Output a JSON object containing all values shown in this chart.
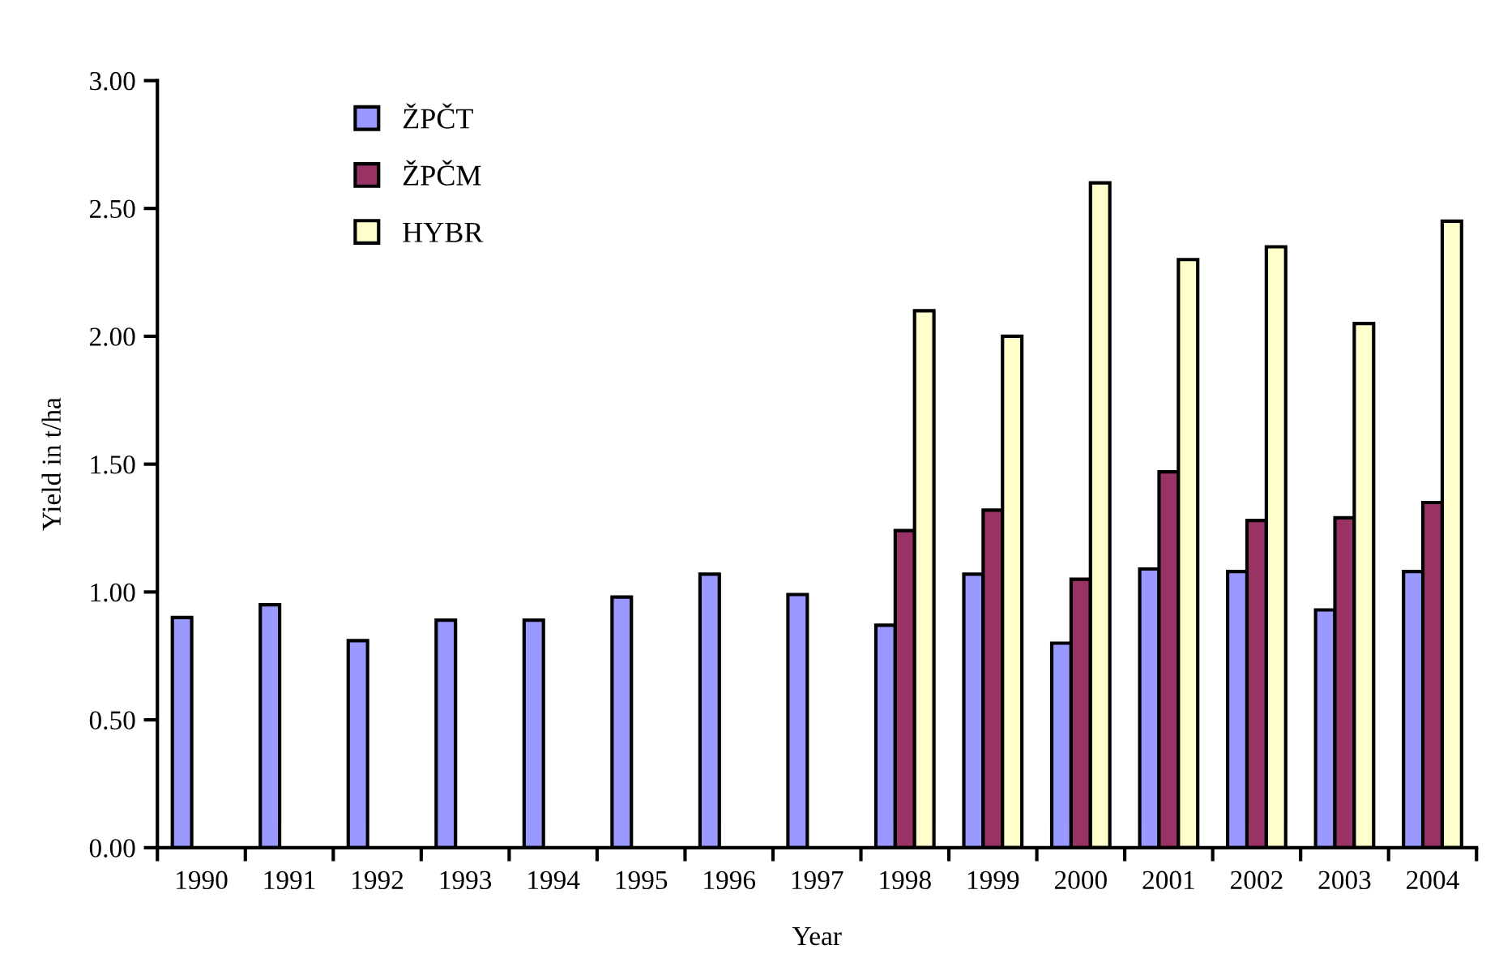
{
  "chart_data": {
    "type": "bar",
    "xlabel": "Year",
    "ylabel": "Yield in t/ha",
    "categories": [
      "1990",
      "1991",
      "1992",
      "1993",
      "1994",
      "1995",
      "1996",
      "1997",
      "1998",
      "1999",
      "2000",
      "2001",
      "2002",
      "2003",
      "2004"
    ],
    "series": [
      {
        "name": "ŽPČT",
        "color": "#9999ff",
        "values": [
          0.9,
          0.95,
          0.81,
          0.89,
          0.89,
          0.98,
          1.07,
          0.99,
          0.87,
          1.07,
          0.8,
          1.09,
          1.08,
          0.93,
          1.08
        ]
      },
      {
        "name": "ŽPČM",
        "color": "#993366",
        "values": [
          null,
          null,
          null,
          null,
          null,
          null,
          null,
          null,
          1.24,
          1.32,
          1.05,
          1.47,
          1.28,
          1.29,
          1.35
        ]
      },
      {
        "name": "HYBR",
        "color": "#ffffcc",
        "values": [
          null,
          null,
          null,
          null,
          null,
          null,
          null,
          null,
          2.1,
          2.0,
          2.6,
          2.3,
          2.35,
          2.05,
          2.45
        ]
      }
    ],
    "ylim": [
      0,
      3
    ],
    "yticks": [
      {
        "value": 0,
        "label": "0.00"
      },
      {
        "value": 0.5,
        "label": "0.50"
      },
      {
        "value": 1,
        "label": "1.00"
      },
      {
        "value": 1.5,
        "label": "1.50"
      },
      {
        "value": 2,
        "label": "2.00"
      },
      {
        "value": 2.5,
        "label": "2.50"
      },
      {
        "value": 3,
        "label": "3.00"
      }
    ],
    "grid": false,
    "legend": "top left"
  }
}
